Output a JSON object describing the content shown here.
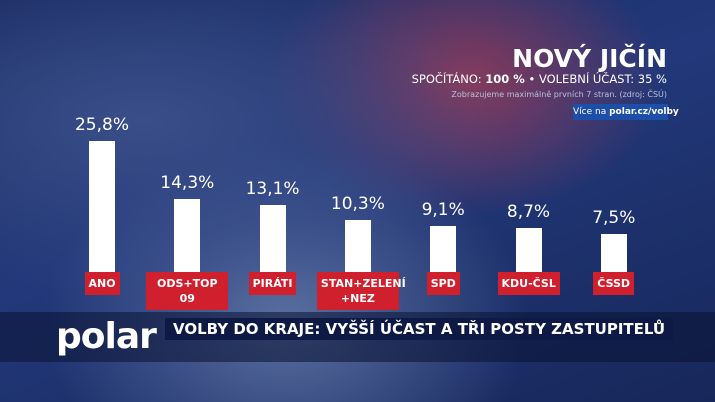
{
  "chart_data": {
    "type": "bar",
    "title": "NOVÝ JIČÍN",
    "counted_label": "SPOČÍTÁNO:",
    "counted_value": "100 %",
    "separator": "•",
    "turnout": "VOLEBNÍ ÚČAST: 35 %",
    "note": "Zobrazujeme maximálně prvních 7 stran. (zdroj: ČSÚ)",
    "categories": [
      "ANO",
      "ODS+TOP 09",
      "PIRÁTI",
      "STAN+ZELENÍ +NEZ",
      "SPD",
      "KDU-ČSL",
      "ČSSD"
    ],
    "values": [
      25.8,
      14.3,
      13.1,
      10.3,
      9.1,
      8.7,
      7.5
    ],
    "value_labels": [
      "25,8%",
      "14,3%",
      "13,1%",
      "10,3%",
      "9,1%",
      "8,7%",
      "7,5%"
    ],
    "color": "#ffffff",
    "label_color": "#d0202e"
  },
  "link": {
    "prefix": "Více na",
    "url": "polar.cz/volby"
  },
  "logo": "polar",
  "headline": "VOLBY DO KRAJE: VYŠŠÍ ÚČAST A TŘI POSTY ZASTUPITELŮ"
}
